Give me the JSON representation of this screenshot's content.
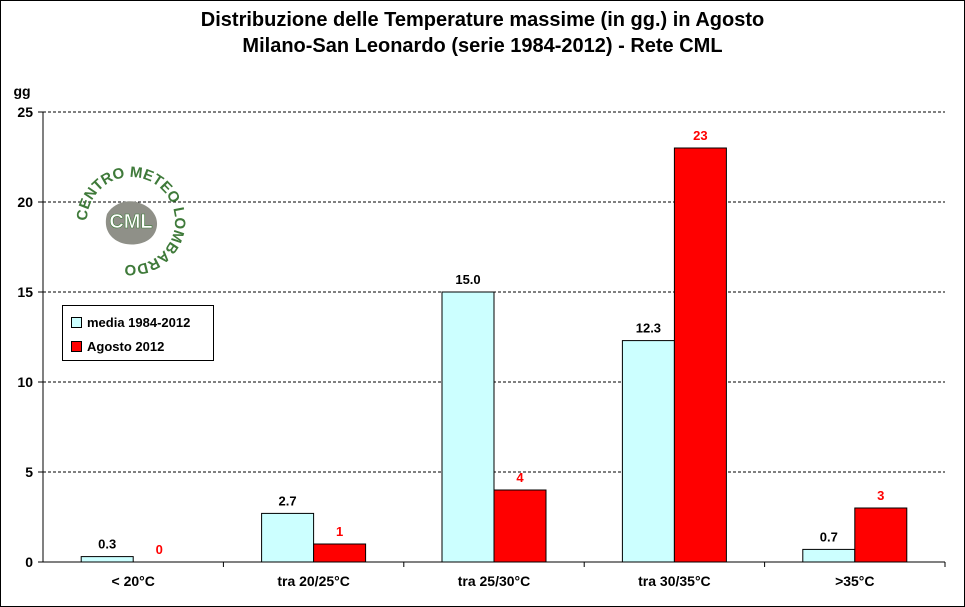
{
  "title_line1": "Distribuzione  delle  Temperature  massime  (in gg.) in Agosto",
  "title_line2": "Milano-San  Leonardo  (serie  1984-2012)  - Rete CML",
  "logo": {
    "text_ring": "CENTRO METEO LOMBARDO",
    "text_center": "CML",
    "colors": {
      "ring": "#3f7a3a",
      "map": "#8a8a80"
    }
  },
  "chart_data": {
    "type": "bar",
    "title": "Distribuzione delle Temperature massime (in gg.) in Agosto - Milano-San Leonardo (serie 1984-2012) - Rete CML",
    "ylabel": "gg",
    "xlabel": "",
    "ylim": [
      0,
      25
    ],
    "yticks": [
      0,
      5,
      10,
      15,
      20,
      25
    ],
    "grid": "horizontal-dashed",
    "legend_position": "left",
    "categories": [
      "< 20°C",
      "tra 20/25°C",
      "tra 25/30°C",
      "tra 30/35°C",
      ">35°C"
    ],
    "series": [
      {
        "name": "media 1984-2012",
        "color": "#ccffff",
        "label_color": "#000000",
        "values": [
          0.3,
          2.7,
          15.0,
          12.3,
          0.7
        ],
        "labels": [
          "0.3",
          "2.7",
          "15.0",
          "12.3",
          "0.7"
        ]
      },
      {
        "name": "Agosto 2012",
        "color": "#ff0000",
        "label_color": "#ff0000",
        "values": [
          0,
          1,
          4,
          23,
          3
        ],
        "labels": [
          "0",
          "1",
          "4",
          "23",
          "3"
        ]
      }
    ]
  }
}
